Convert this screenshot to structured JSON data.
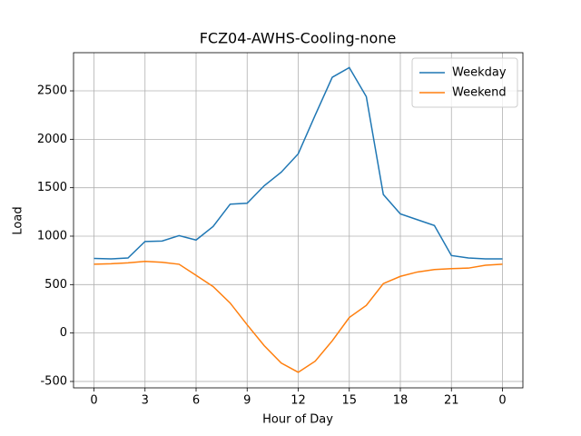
{
  "chart_data": {
    "type": "line",
    "title": "FCZ04-AWHS-Cooling-none",
    "x_label": "Hour of Day",
    "y_label": "Load",
    "x": [
      0,
      1,
      2,
      3,
      4,
      5,
      6,
      7,
      8,
      9,
      10,
      11,
      12,
      13,
      14,
      15,
      16,
      17,
      18,
      19,
      20,
      21,
      22,
      23,
      24
    ],
    "series": [
      {
        "name": "Weekday",
        "color": "#1f77b4",
        "values": [
          770,
          765,
          775,
          945,
          950,
          1005,
          960,
          1100,
          1330,
          1340,
          1520,
          1660,
          1850,
          2250,
          2640,
          2740,
          2440,
          1430,
          1230,
          1170,
          1110,
          800,
          775,
          765,
          765
        ]
      },
      {
        "name": "Weekend",
        "color": "#ff7f0e",
        "values": [
          710,
          715,
          725,
          740,
          730,
          710,
          595,
          480,
          310,
          85,
          -130,
          -310,
          -405,
          -290,
          -80,
          160,
          285,
          510,
          585,
          630,
          655,
          665,
          670,
          700,
          710
        ]
      }
    ],
    "xlim": [
      -1.2,
      25.2
    ],
    "xticks": [
      0,
      3,
      6,
      9,
      12,
      15,
      18,
      21,
      {
        "value": 24,
        "label": "0"
      }
    ],
    "ylim": [
      -566,
      2894
    ],
    "yticks": [
      -500,
      0,
      500,
      1000,
      1500,
      2000,
      2500
    ],
    "grid": true,
    "legend": "upper right"
  }
}
